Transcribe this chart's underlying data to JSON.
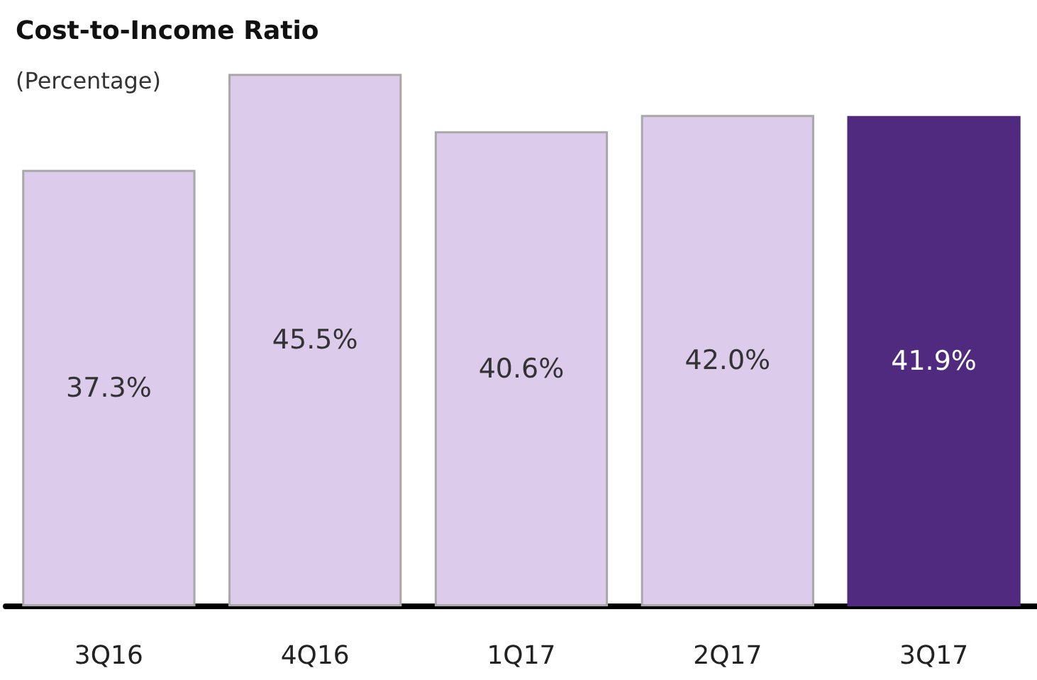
{
  "chart_data": {
    "type": "bar",
    "title": "Cost-to-Income Ratio",
    "subtitle": "(Percentage)",
    "categories": [
      "3Q16",
      "4Q16",
      "1Q17",
      "2Q17",
      "3Q17"
    ],
    "values": [
      37.3,
      45.5,
      40.6,
      42.0,
      41.9
    ],
    "colors": [
      "#dccbeb",
      "#dccbeb",
      "#dccbeb",
      "#dccbeb",
      "#4f2a7f"
    ],
    "data_labels": true,
    "value_labels": [
      "37.3%",
      "45.5%",
      "40.6%",
      "42.0%",
      "41.9%"
    ]
  }
}
